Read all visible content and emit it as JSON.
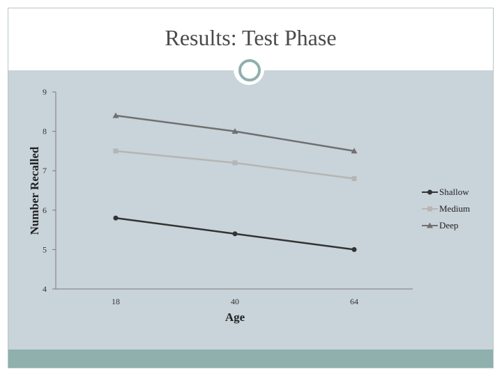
{
  "slide": {
    "title": "Results: Test Phase",
    "colors": {
      "content_bg": "#c9d3da",
      "footer": "#8fb0ad",
      "accent_ring": "#8fb0ad"
    },
    "icon": "circle-ring-icon"
  },
  "chart_data": {
    "type": "line",
    "title": "",
    "xlabel": "Age",
    "ylabel": "Number Recalled",
    "categories": [
      "18",
      "40",
      "64"
    ],
    "ylim": [
      4,
      9
    ],
    "yticks": [
      4,
      5,
      6,
      7,
      8,
      9
    ],
    "grid": false,
    "legend_position": "right",
    "series": [
      {
        "name": "Shallow",
        "values": [
          5.8,
          5.4,
          5.0
        ],
        "color": "#333333",
        "marker": "circle"
      },
      {
        "name": "Medium",
        "values": [
          7.5,
          7.2,
          6.8
        ],
        "color": "#b5b5b5",
        "marker": "square"
      },
      {
        "name": "Deep",
        "values": [
          8.4,
          8.0,
          7.5
        ],
        "color": "#707070",
        "marker": "triangle"
      }
    ]
  }
}
